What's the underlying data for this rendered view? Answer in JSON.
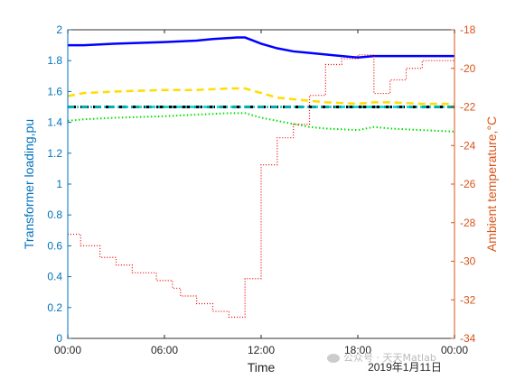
{
  "chart_data": {
    "type": "line",
    "title": "",
    "xlabel": "Time",
    "date_label": "2019年1月11日",
    "ylabel_left": "Transformer loading,pu",
    "ylabel_right": "Ambient temperature,°C",
    "xlim": [
      0,
      24
    ],
    "ylim_left": [
      0,
      2
    ],
    "ylim_right": [
      -34,
      -18
    ],
    "x_ticks": [
      0,
      6,
      12,
      18,
      24
    ],
    "x_tick_labels": [
      "00:00",
      "06:00",
      "12:00",
      "18:00",
      "00:00"
    ],
    "y_left_ticks": [
      0,
      0.2,
      0.4,
      0.6,
      0.8,
      1,
      1.2,
      1.4,
      1.6,
      1.8,
      2
    ],
    "y_left_tick_labels": [
      "0",
      "0.2",
      "0.4",
      "0.6",
      "0.8",
      "1",
      "1.2",
      "1.4",
      "1.6",
      "1.8",
      "2"
    ],
    "y_right_ticks": [
      -34,
      -32,
      -30,
      -28,
      -26,
      -24,
      -22,
      -20,
      -18
    ],
    "y_right_tick_labels": [
      "-34",
      "-32",
      "-30",
      "-28",
      "-26",
      "-24",
      "-22",
      "-20",
      "-18"
    ],
    "grid": false,
    "legend": "none",
    "series": [
      {
        "axis": "left",
        "color": "#0000ff",
        "style": "solid",
        "points": [
          [
            0,
            1.9
          ],
          [
            1,
            1.9
          ],
          [
            3,
            1.91
          ],
          [
            6,
            1.92
          ],
          [
            8,
            1.93
          ],
          [
            9,
            1.94
          ],
          [
            10.5,
            1.95
          ],
          [
            11,
            1.95
          ],
          [
            11.5,
            1.93
          ],
          [
            12,
            1.91
          ],
          [
            13,
            1.88
          ],
          [
            14,
            1.86
          ],
          [
            15,
            1.85
          ],
          [
            16,
            1.84
          ],
          [
            17,
            1.83
          ],
          [
            18,
            1.82
          ],
          [
            19,
            1.83
          ],
          [
            20,
            1.83
          ],
          [
            22,
            1.83
          ],
          [
            24,
            1.83
          ]
        ]
      },
      {
        "axis": "left",
        "color": "#ffdd00",
        "style": "dashed",
        "points": [
          [
            0,
            1.57
          ],
          [
            1,
            1.59
          ],
          [
            3,
            1.6
          ],
          [
            6,
            1.61
          ],
          [
            8,
            1.61
          ],
          [
            10,
            1.62
          ],
          [
            11,
            1.62
          ],
          [
            12,
            1.59
          ],
          [
            13,
            1.56
          ],
          [
            14,
            1.55
          ],
          [
            15,
            1.54
          ],
          [
            16,
            1.53
          ],
          [
            18,
            1.52
          ],
          [
            19,
            1.53
          ],
          [
            20,
            1.53
          ],
          [
            22,
            1.52
          ],
          [
            24,
            1.52
          ]
        ]
      },
      {
        "axis": "left",
        "color": "#00e000",
        "style": "dotted",
        "points": [
          [
            0,
            1.41
          ],
          [
            1,
            1.42
          ],
          [
            3,
            1.43
          ],
          [
            6,
            1.44
          ],
          [
            8,
            1.45
          ],
          [
            10,
            1.46
          ],
          [
            11,
            1.46
          ],
          [
            12,
            1.43
          ],
          [
            13,
            1.41
          ],
          [
            14,
            1.39
          ],
          [
            15,
            1.37
          ],
          [
            16,
            1.36
          ],
          [
            18,
            1.35
          ],
          [
            19,
            1.37
          ],
          [
            20,
            1.36
          ],
          [
            22,
            1.35
          ],
          [
            24,
            1.34
          ]
        ]
      },
      {
        "axis": "left",
        "color": "#000000",
        "style": "dashed-thick",
        "points": [
          [
            0,
            1.5
          ],
          [
            24,
            1.5
          ]
        ]
      },
      {
        "axis": "left",
        "color": "#00cccc",
        "style": "dashdot",
        "points": [
          [
            0,
            1.5
          ],
          [
            24,
            1.5
          ]
        ]
      },
      {
        "axis": "right",
        "color": "#ee0000",
        "style": "dotted",
        "points": [
          [
            0,
            -28.6
          ],
          [
            0.8,
            -28.6
          ],
          [
            0.8,
            -29.2
          ],
          [
            2,
            -29.2
          ],
          [
            2,
            -29.8
          ],
          [
            3,
            -29.8
          ],
          [
            3,
            -30.2
          ],
          [
            4,
            -30.2
          ],
          [
            4,
            -30.6
          ],
          [
            5.5,
            -30.6
          ],
          [
            5.5,
            -31
          ],
          [
            6.5,
            -31
          ],
          [
            6.5,
            -31.4
          ],
          [
            7,
            -31.4
          ],
          [
            7,
            -31.8
          ],
          [
            8,
            -31.8
          ],
          [
            8,
            -32.2
          ],
          [
            9,
            -32.2
          ],
          [
            9,
            -32.6
          ],
          [
            10,
            -32.6
          ],
          [
            10,
            -32.9
          ],
          [
            11,
            -32.9
          ],
          [
            11,
            -30.9
          ],
          [
            12,
            -30.9
          ],
          [
            12,
            -25
          ],
          [
            13,
            -25
          ],
          [
            13,
            -23.6
          ],
          [
            14,
            -23.6
          ],
          [
            14,
            -22.9
          ],
          [
            15,
            -22.9
          ],
          [
            15,
            -21.4
          ],
          [
            16,
            -21.4
          ],
          [
            16,
            -19.8
          ],
          [
            17,
            -19.8
          ],
          [
            17,
            -19.5
          ],
          [
            18,
            -19.5
          ],
          [
            18,
            -19.3
          ],
          [
            19,
            -19.3
          ],
          [
            19,
            -21.3
          ],
          [
            20,
            -21.3
          ],
          [
            20,
            -20.6
          ],
          [
            21,
            -20.6
          ],
          [
            21,
            -20
          ],
          [
            22,
            -20
          ],
          [
            22,
            -19.6
          ],
          [
            24,
            -19.6
          ]
        ]
      }
    ]
  }
}
